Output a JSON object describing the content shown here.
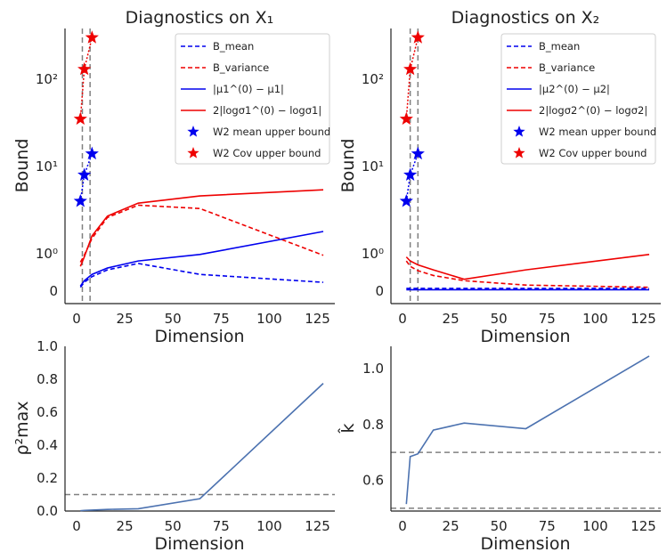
{
  "colors": {
    "blue": "#0000ee",
    "red": "#ee0000",
    "steel": "#4c72b0",
    "dash_gray": "#808080"
  },
  "chart_data": [
    {
      "id": "x1",
      "type": "line",
      "title": "Diagnostics on X₁",
      "xlabel": "Dimension",
      "ylabel": "Bound",
      "yscale": "symlog",
      "xlim": [
        -6,
        134
      ],
      "xticks": [
        "0",
        "25",
        "50",
        "75",
        "100",
        "125"
      ],
      "ytick_labels": [
        "0",
        "10⁰",
        "10¹",
        "10²"
      ],
      "vlines": [
        3,
        7
      ],
      "legend_position": "upper right",
      "series": [
        {
          "name": "B_mean",
          "style": "dashed",
          "color": "#0000ee",
          "x": [
            2,
            4,
            8,
            16,
            32,
            64,
            128
          ],
          "y": [
            0.03,
            0.08,
            0.16,
            0.3,
            0.5,
            0.2,
            0.08
          ]
        },
        {
          "name": "B_variance",
          "style": "dashed",
          "color": "#ee0000",
          "x": [
            2,
            4,
            8,
            16,
            32,
            64,
            128
          ],
          "y": [
            0.55,
            0.9,
            1.5,
            2.6,
            3.6,
            3.3,
            0.9
          ]
        },
        {
          "name": "|μ1^(0) − μ1|",
          "style": "solid",
          "color": "#0000ee",
          "x": [
            2,
            4,
            8,
            16,
            32,
            64,
            128
          ],
          "y": [
            0.04,
            0.1,
            0.2,
            0.35,
            0.6,
            0.95,
            1.8
          ]
        },
        {
          "name": "2|logσ1^(0) − logσ1|",
          "style": "solid",
          "color": "#ee0000",
          "x": [
            2,
            4,
            8,
            16,
            32,
            64,
            128
          ],
          "y": [
            0.4,
            0.8,
            1.6,
            2.7,
            3.8,
            4.6,
            5.4
          ]
        },
        {
          "name": "W2 mean upper bound",
          "style": "markers",
          "marker": "star",
          "color": "#0000ee",
          "x": [
            2,
            4,
            8
          ],
          "y": [
            4,
            8,
            14
          ]
        },
        {
          "name": "W2 Cov upper bound",
          "style": "markers",
          "marker": "star",
          "color": "#ee0000",
          "x": [
            2,
            4,
            8
          ],
          "y": [
            35,
            130,
            300
          ]
        }
      ]
    },
    {
      "id": "x2",
      "type": "line",
      "title": "Diagnostics on X₂",
      "xlabel": "Dimension",
      "ylabel": "Bound",
      "yscale": "symlog",
      "xlim": [
        -6,
        134
      ],
      "xticks": [
        "0",
        "25",
        "50",
        "75",
        "100",
        "125"
      ],
      "ytick_labels": [
        "0",
        "10⁰",
        "10¹",
        "10²"
      ],
      "vlines": [
        4,
        8
      ],
      "legend_position": "upper right",
      "series": [
        {
          "name": "B_mean",
          "style": "dashed",
          "color": "#0000ee",
          "x": [
            2,
            4,
            8,
            16,
            32,
            64,
            128
          ],
          "y": [
            0.02,
            0.02,
            0.02,
            0.02,
            0.02,
            0.02,
            0.02
          ]
        },
        {
          "name": "B_variance",
          "style": "dashed",
          "color": "#ee0000",
          "x": [
            2,
            4,
            8,
            16,
            32,
            64,
            128
          ],
          "y": [
            0.6,
            0.4,
            0.28,
            0.18,
            0.1,
            0.05,
            0.03
          ]
        },
        {
          "name": "|μ2^(0) − μ2|",
          "style": "solid",
          "color": "#0000ee",
          "x": [
            2,
            4,
            8,
            16,
            32,
            64,
            128
          ],
          "y": [
            0.01,
            0.01,
            0.01,
            0.01,
            0.01,
            0.01,
            0.01
          ]
        },
        {
          "name": "2|logσ2^(0) − logσ2|",
          "style": "solid",
          "color": "#ee0000",
          "x": [
            2,
            4,
            8,
            16,
            32,
            64,
            128
          ],
          "y": [
            0.8,
            0.6,
            0.45,
            0.3,
            0.12,
            0.3,
            0.95
          ]
        },
        {
          "name": "W2 mean upper bound",
          "style": "markers",
          "marker": "star",
          "color": "#0000ee",
          "x": [
            2,
            4,
            8
          ],
          "y": [
            4,
            8,
            14
          ]
        },
        {
          "name": "W2 Cov upper bound",
          "style": "markers",
          "marker": "star",
          "color": "#ee0000",
          "x": [
            2,
            4,
            8
          ],
          "y": [
            35,
            130,
            300
          ]
        }
      ]
    },
    {
      "id": "rho",
      "type": "line",
      "xlabel": "Dimension",
      "ylabel": "ρ²max",
      "xlim": [
        -6,
        134
      ],
      "ylim": [
        0,
        1
      ],
      "xticks": [
        "0",
        "25",
        "50",
        "75",
        "100",
        "125"
      ],
      "yticks": [
        "0.0",
        "0.2",
        "0.4",
        "0.6",
        "0.8",
        "1.0"
      ],
      "hlines": [
        0.1
      ],
      "series": [
        {
          "color": "#4c72b0",
          "x": [
            2,
            4,
            8,
            16,
            32,
            64,
            128
          ],
          "y": [
            0.002,
            0.004,
            0.006,
            0.01,
            0.014,
            0.075,
            0.775
          ]
        }
      ]
    },
    {
      "id": "khat",
      "type": "line",
      "xlabel": "Dimension",
      "ylabel": "k̂",
      "xlim": [
        -6,
        134
      ],
      "ylim": [
        0.49,
        1.08
      ],
      "xticks": [
        "0",
        "25",
        "50",
        "75",
        "100",
        "125"
      ],
      "yticks": [
        "0.6",
        "0.8",
        "1.0"
      ],
      "hlines": [
        0.5,
        0.7
      ],
      "series": [
        {
          "color": "#4c72b0",
          "x": [
            2,
            4,
            8,
            16,
            32,
            64,
            128
          ],
          "y": [
            0.515,
            0.685,
            0.695,
            0.78,
            0.805,
            0.785,
            1.045
          ]
        }
      ]
    }
  ]
}
